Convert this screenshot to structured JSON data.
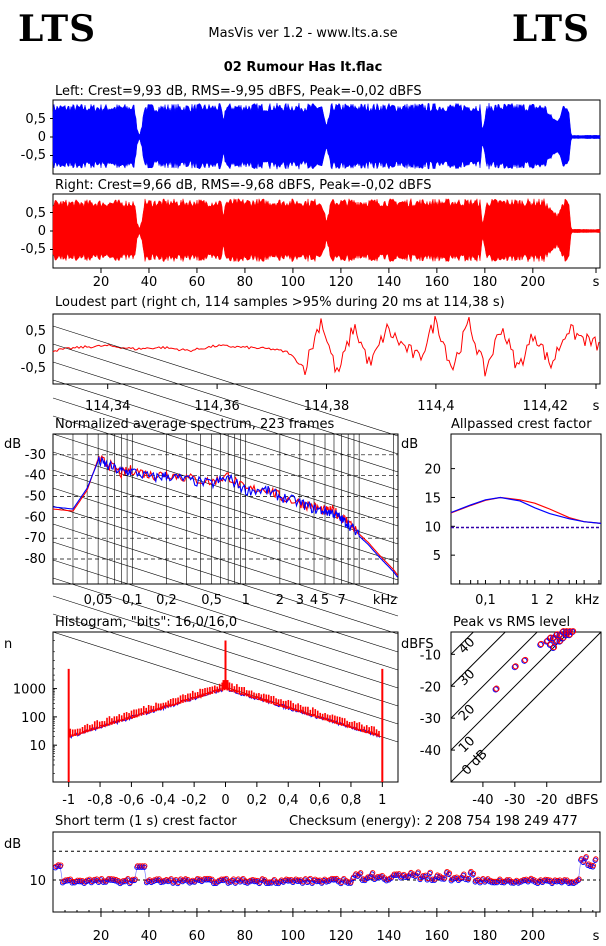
{
  "header": {
    "logo_left": "LTS",
    "logo_right": "LTS",
    "app_title": "MasVis ver 1.2 - www.lts.a.se",
    "track_title": "02 Rumour Has It.flac"
  },
  "chart_data": [
    {
      "id": "left",
      "type": "area",
      "title": "Left: Crest=9,93 dB, RMS=-9,95 dBFS, Peak=-0,02 dBFS",
      "color": "#0000ff",
      "ylim": [
        -1,
        1
      ],
      "yticks": [
        "0,5",
        "0",
        "-0,5"
      ],
      "xlim": [
        0,
        228
      ],
      "envelope": [
        [
          0,
          0.95
        ],
        [
          2,
          0.95
        ],
        [
          34,
          0.95
        ],
        [
          35,
          0.3
        ],
        [
          36,
          0.05
        ],
        [
          37,
          0.3
        ],
        [
          38,
          0.95
        ],
        [
          70,
          0.96
        ],
        [
          71,
          0.5
        ],
        [
          72,
          0.97
        ],
        [
          112,
          0.97
        ],
        [
          114,
          0.3
        ],
        [
          116,
          0.97
        ],
        [
          178,
          0.97
        ],
        [
          179,
          0.2
        ],
        [
          181,
          0.97
        ],
        [
          205,
          0.97
        ],
        [
          207,
          0.7
        ],
        [
          210,
          0.5
        ],
        [
          213,
          0.97
        ],
        [
          215,
          0.95
        ],
        [
          216,
          0.05
        ],
        [
          228,
          0.05
        ]
      ]
    },
    {
      "id": "right",
      "type": "area",
      "title": "Right: Crest=9,66 dB, RMS=-9,68 dBFS, Peak=-0,02 dBFS",
      "color": "#ff0000",
      "ylim": [
        -1,
        1
      ],
      "yticks": [
        "0,5",
        "0",
        "-0,5"
      ],
      "xlim": [
        0,
        228
      ],
      "xticks": [
        "20",
        "40",
        "60",
        "80",
        "100",
        "120",
        "140",
        "160",
        "180",
        "200",
        "s"
      ],
      "envelope": [
        [
          0,
          0.9
        ],
        [
          2,
          0.9
        ],
        [
          34,
          0.9
        ],
        [
          35,
          0.3
        ],
        [
          36,
          0.05
        ],
        [
          37,
          0.3
        ],
        [
          38,
          0.92
        ],
        [
          70,
          0.92
        ],
        [
          71,
          0.5
        ],
        [
          72,
          0.93
        ],
        [
          112,
          0.93
        ],
        [
          114,
          0.3
        ],
        [
          116,
          0.93
        ],
        [
          178,
          0.93
        ],
        [
          179,
          0.2
        ],
        [
          181,
          0.93
        ],
        [
          205,
          0.93
        ],
        [
          207,
          0.7
        ],
        [
          210,
          0.5
        ],
        [
          213,
          0.93
        ],
        [
          215,
          0.9
        ],
        [
          216,
          0.05
        ],
        [
          228,
          0.05
        ]
      ]
    },
    {
      "id": "loudest",
      "type": "line",
      "title": "Loudest part (right ch, 114 samples >95% during 20 ms at 114,38 s)",
      "color": "#ff0000",
      "ylim": [
        -1,
        1
      ],
      "yticks": [
        "0,5",
        "0",
        "-0,5"
      ],
      "xlim": [
        114.33,
        114.43
      ],
      "xticks": [
        "114,34",
        "114,36",
        "114,38",
        "114,4",
        "114,42",
        "s"
      ],
      "x": [
        114.33,
        114.335,
        114.34,
        114.345,
        114.35,
        114.355,
        114.36,
        114.365,
        114.37,
        114.373,
        114.376,
        114.379,
        114.382,
        114.385,
        114.388,
        114.391,
        114.394,
        114.397,
        114.4,
        114.403,
        114.406,
        114.409,
        114.412,
        114.415,
        114.418,
        114.421,
        114.424,
        114.427,
        114.43
      ],
      "values": [
        -0.05,
        0.05,
        0.1,
        0.0,
        0.05,
        -0.05,
        0.1,
        0.05,
        0.0,
        -0.1,
        -0.6,
        0.9,
        -0.8,
        0.7,
        -0.5,
        0.6,
        0.1,
        -0.3,
        0.9,
        -0.6,
        0.8,
        -0.7,
        0.7,
        -0.6,
        0.5,
        -0.5,
        0.6,
        0.3,
        0.1
      ]
    },
    {
      "id": "spectrum",
      "type": "line",
      "title": "Normalized average spectrum, 223 frames",
      "ylabel": "dB",
      "yticks": [
        "-30",
        "-40",
        "-50",
        "-60",
        "-70",
        "-80"
      ],
      "ylim": [
        -92,
        -20
      ],
      "xscale": "log",
      "xlim": [
        0.02,
        22
      ],
      "xticks": [
        "0,05",
        "0,1",
        "0,2",
        "0,5",
        "1",
        "2",
        "3",
        "4",
        "5",
        "7",
        "kHz"
      ],
      "series": [
        {
          "color": "#ff0000",
          "x": [
            0.02,
            0.03,
            0.04,
            0.05,
            0.06,
            0.08,
            0.1,
            0.15,
            0.2,
            0.3,
            0.5,
            0.7,
            1,
            1.5,
            2,
            3,
            4,
            5,
            6,
            7,
            8,
            10,
            12,
            15,
            20,
            22
          ],
          "values": [
            -56,
            -57,
            -47,
            -32,
            -34,
            -39,
            -37,
            -40,
            -39,
            -41,
            -43,
            -40,
            -47,
            -46,
            -50,
            -53,
            -55,
            -57,
            -57,
            -60,
            -62,
            -68,
            -72,
            -78,
            -85,
            -88
          ]
        },
        {
          "color": "#0000ff",
          "x": [
            0.02,
            0.03,
            0.04,
            0.05,
            0.06,
            0.08,
            0.1,
            0.15,
            0.2,
            0.3,
            0.5,
            0.7,
            1,
            1.5,
            2,
            3,
            4,
            5,
            6,
            7,
            8,
            10,
            12,
            15,
            20,
            22
          ],
          "values": [
            -55,
            -56,
            -46,
            -33,
            -35,
            -38,
            -38,
            -41,
            -40,
            -42,
            -44,
            -41,
            -47,
            -47,
            -50,
            -53,
            -56,
            -57,
            -58,
            -61,
            -63,
            -69,
            -73,
            -79,
            -86,
            -89
          ]
        }
      ]
    },
    {
      "id": "crest-allpass",
      "type": "line",
      "title": "Allpassed crest factor",
      "ylabel": "dB",
      "yticks": [
        "20",
        "15",
        "10",
        "5"
      ],
      "ylim": [
        0,
        26
      ],
      "xscale": "log",
      "xlim": [
        0.02,
        22
      ],
      "xticks": [
        "0,1",
        "1",
        "2",
        "kHz"
      ],
      "reference": 9.8,
      "series": [
        {
          "color": "#ff0000",
          "x": [
            0.02,
            0.05,
            0.1,
            0.2,
            0.5,
            1,
            2,
            5,
            10,
            22
          ],
          "values": [
            12.3,
            13.6,
            14.5,
            15.0,
            14.6,
            14.0,
            13.0,
            11.5,
            10.8,
            10.5
          ]
        },
        {
          "color": "#0000ff",
          "x": [
            0.02,
            0.05,
            0.1,
            0.2,
            0.5,
            1,
            2,
            5,
            10,
            22
          ],
          "values": [
            12.4,
            13.7,
            14.6,
            15.0,
            14.4,
            13.2,
            12.2,
            11.3,
            10.8,
            10.5
          ]
        }
      ]
    },
    {
      "id": "histogram",
      "type": "bar",
      "title": "Histogram, \"bits\": 16,0/16,0",
      "ylabel": "n",
      "yscale": "log",
      "yticks": [
        "1000",
        "100",
        "10"
      ],
      "xlim": [
        -1.1,
        1.1
      ],
      "xticks": [
        "-1",
        "-0,8",
        "-0,6",
        "-0,4",
        "-0,2",
        "0",
        "0,2",
        "0,4",
        "0,6",
        "0,8",
        "1"
      ]
    },
    {
      "id": "peak-rms",
      "type": "scatter",
      "title": "Peak vs RMS level",
      "ylabel": "dBFS",
      "yticks": [
        "-10",
        "-20",
        "-30",
        "-40"
      ],
      "ylim": [
        -50,
        -3
      ],
      "xlim": [
        -50,
        -3
      ],
      "xticks": [
        "-40",
        "-30",
        "-20",
        "dBFS"
      ],
      "diagonals": [
        "40",
        "30",
        "20",
        "10",
        "0 dB"
      ],
      "points": [
        [
          -36,
          -21
        ],
        [
          -30,
          -14
        ],
        [
          -27,
          -12
        ],
        [
          -22,
          -7
        ],
        [
          -20,
          -6
        ],
        [
          -19,
          -5
        ],
        [
          -18,
          -5
        ],
        [
          -17,
          -4
        ],
        [
          -16,
          -4
        ],
        [
          -15,
          -3
        ],
        [
          -14,
          -3
        ],
        [
          -13,
          -3
        ],
        [
          -12,
          -3
        ],
        [
          -19,
          -7
        ],
        [
          -17,
          -6
        ],
        [
          -16,
          -6
        ],
        [
          -15,
          -5
        ],
        [
          -18,
          -8
        ],
        [
          -14,
          -4
        ],
        [
          -13,
          -4
        ]
      ]
    },
    {
      "id": "short-crest",
      "type": "scatter",
      "title": "Short term (1 s) crest factor",
      "checksum": "Checksum (energy):  2 208 754 198 249 477",
      "ylabel": "dB",
      "yticks": [
        "10"
      ],
      "ylim": [
        0,
        25
      ],
      "reference": 19,
      "xlim": [
        0,
        228
      ],
      "xticks": [
        "20",
        "40",
        "60",
        "80",
        "100",
        "120",
        "140",
        "160",
        "180",
        "200",
        "s"
      ]
    }
  ]
}
